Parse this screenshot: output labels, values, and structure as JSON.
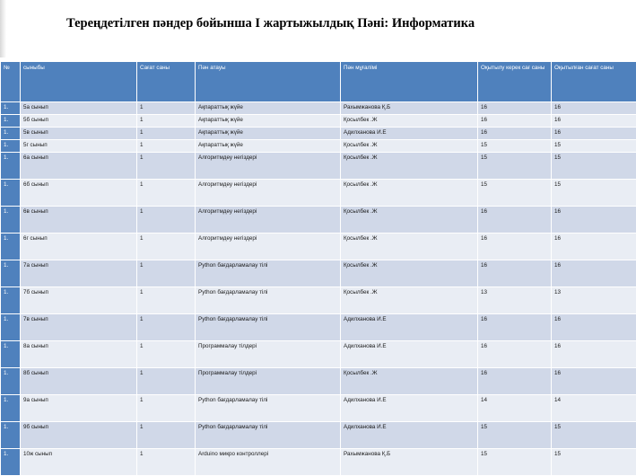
{
  "document": {
    "title": "Тереңдетілген пәндер бойынша І жартыжылдық Пәні: Информатика"
  },
  "table": {
    "headers": [
      "№",
      "сыныбы",
      "Сағат саны",
      "Пән атауы",
      "Пән мұғалімі",
      "Оқытылу керек сағ саны",
      "Оқытылған сағат саны"
    ],
    "rows": [
      [
        "1.",
        "5а сынып",
        "1",
        "Ақпараттық  жүйе",
        "Рахымжанова  Қ.Б",
        "16",
        "16"
      ],
      [
        "1.",
        "5б  сынып",
        "1",
        "Ақпараттық  жүйе",
        "Қосылбек .Ж",
        "16",
        "16"
      ],
      [
        "1.",
        "5в  сынып",
        "1",
        "Ақпараттық  жүйе",
        "Адилханова  И.Е",
        "16",
        "16"
      ],
      [
        "1.",
        "5г  сынып",
        "1",
        "Ақпараттық  жүйе",
        "Қосылбек .Ж",
        "15",
        "15"
      ],
      [
        "1.",
        "6а сынып",
        "1",
        "Алгоритмдеу    негіздері",
        "Қосылбек .Ж",
        "15",
        "15"
      ],
      [
        "1.",
        "6б сынып",
        "1",
        "Алгоритмдеу    негіздері",
        "Қосылбек .Ж",
        "15",
        "15"
      ],
      [
        "1.",
        "6в сынып",
        "1",
        "Алгоритмдеу    негіздері",
        "Қосылбек .Ж",
        "16",
        "16"
      ],
      [
        "1.",
        "6г сынып",
        "1",
        "Алгоритмдеу    негіздері",
        "Қосылбек .Ж",
        "16",
        "16"
      ],
      [
        "1.",
        "7а сынып",
        "1",
        "Python бағдарламалау тілі",
        "Қосылбек .Ж",
        "16",
        "16"
      ],
      [
        "1.",
        "7б сынып",
        "1",
        "Python бағдарламалау тілі",
        "Қосылбек .Ж",
        "13",
        "13"
      ],
      [
        "1.",
        "7в сынып",
        "1",
        "Python бағдарламалау тілі",
        "Адилханова  И.Е",
        "16",
        "16"
      ],
      [
        "1.",
        "8а сынып",
        "1",
        "Программалау   тілдері",
        "Адилханова  И.Е",
        "16",
        "16"
      ],
      [
        "1.",
        "8б сынып",
        "1",
        "Программалау   тілдері",
        "Қосылбек .Ж",
        "16",
        "16"
      ],
      [
        "1.",
        "9а сынып",
        "1",
        "Python бағдарламалау тілі",
        "Адилханова  И.Е",
        "14",
        "14"
      ],
      [
        "1.",
        "9б сынып",
        "1",
        "Python бағдарламалау тілі",
        "Адилханова  И.Е",
        "15",
        "15"
      ],
      [
        "1.",
        "10ж сынып",
        "1",
        "Arduino микро контроллері",
        "Рахымжанова Қ.Б",
        "15",
        "15"
      ]
    ]
  }
}
